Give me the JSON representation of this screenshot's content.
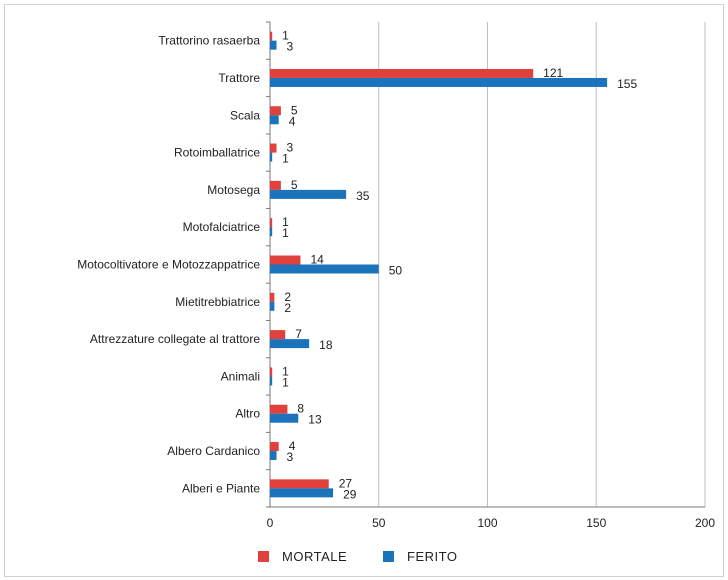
{
  "chart_data": {
    "type": "bar",
    "orientation": "horizontal",
    "categories": [
      "Trattorino rasaerba",
      "Trattore",
      "Scala",
      "Rotoimballatrice",
      "Motosega",
      "Motofalciatrice",
      "Motocoltivatore e Motozzappatrice",
      "Mietitrebbiatrice",
      "Attrezzature collegate al trattore",
      "Animali",
      "Altro",
      "Albero Cardanico",
      "Alberi e Piante"
    ],
    "series": [
      {
        "name": "MORTALE",
        "color": "#e0413c",
        "values": [
          1,
          121,
          5,
          3,
          5,
          1,
          14,
          2,
          7,
          1,
          8,
          4,
          27
        ]
      },
      {
        "name": "FERITO",
        "color": "#1a73bb",
        "values": [
          3,
          155,
          4,
          1,
          35,
          1,
          50,
          2,
          18,
          1,
          13,
          3,
          29
        ]
      }
    ],
    "xlim": [
      0,
      200
    ],
    "xticks": [
      0,
      50,
      100,
      150,
      200
    ],
    "grid": true,
    "legend_position": "bottom"
  }
}
